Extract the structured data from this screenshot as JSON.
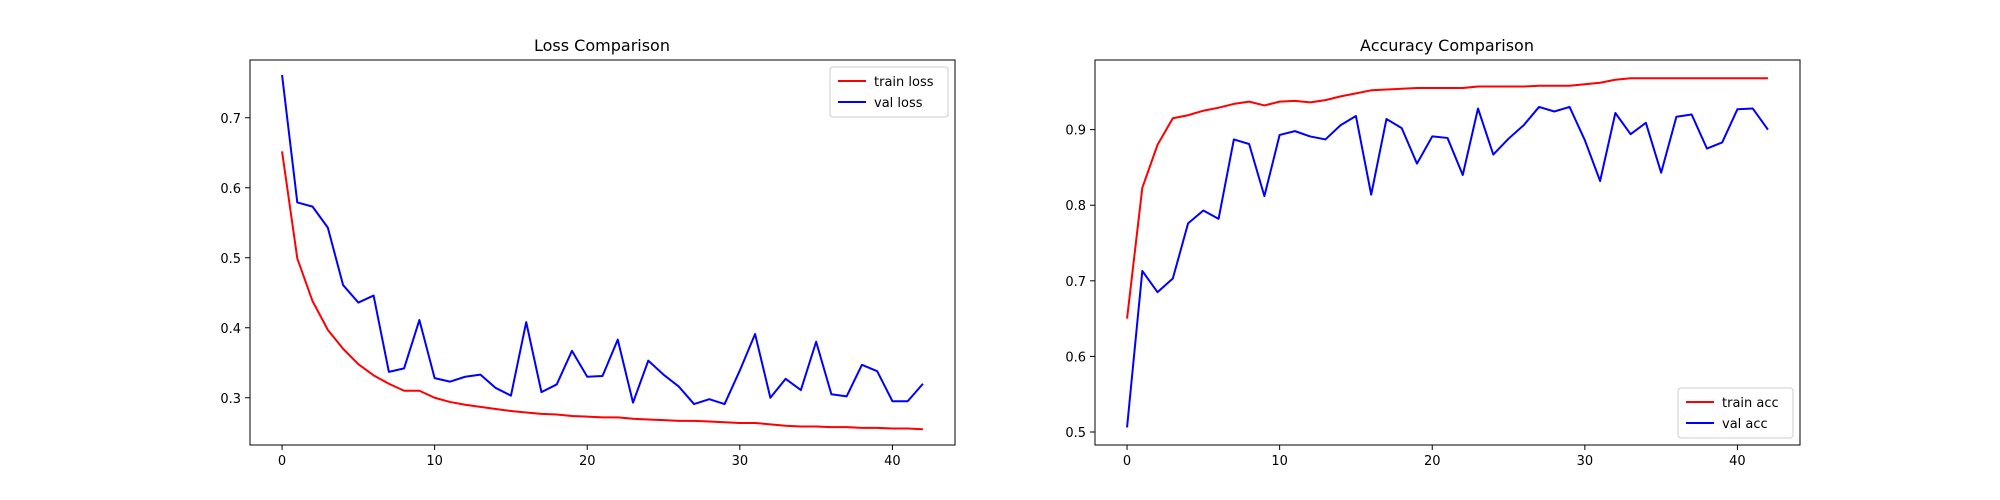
{
  "chart_data": [
    {
      "type": "line",
      "title": "Loss Comparison",
      "xlabel": "",
      "ylabel": "",
      "xlim": [
        -2.1,
        44.1
      ],
      "ylim": [
        0.2325,
        0.7825
      ],
      "x_ticks": [
        0,
        10,
        20,
        30,
        40
      ],
      "y_ticks": [
        0.3,
        0.4,
        0.5,
        0.6,
        0.7
      ],
      "legend_position": "top-right",
      "x": [
        0,
        1,
        2,
        3,
        4,
        5,
        6,
        7,
        8,
        9,
        10,
        11,
        12,
        13,
        14,
        15,
        16,
        17,
        18,
        19,
        20,
        21,
        22,
        23,
        24,
        25,
        26,
        27,
        28,
        29,
        30,
        31,
        32,
        33,
        34,
        35,
        36,
        37,
        38,
        39,
        40,
        41,
        42
      ],
      "series": [
        {
          "name": "train loss",
          "color": "#ff0000",
          "values": [
            0.652,
            0.499,
            0.438,
            0.397,
            0.37,
            0.348,
            0.332,
            0.32,
            0.31,
            0.31,
            0.3,
            0.294,
            0.29,
            0.287,
            0.284,
            0.281,
            0.279,
            0.277,
            0.276,
            0.274,
            0.273,
            0.272,
            0.272,
            0.27,
            0.269,
            0.268,
            0.267,
            0.267,
            0.266,
            0.265,
            0.264,
            0.264,
            0.262,
            0.26,
            0.259,
            0.259,
            0.258,
            0.258,
            0.257,
            0.257,
            0.256,
            0.256,
            0.255
          ]
        },
        {
          "name": "val loss",
          "color": "#0000ff",
          "values": [
            0.761,
            0.579,
            0.573,
            0.543,
            0.461,
            0.436,
            0.446,
            0.337,
            0.342,
            0.411,
            0.328,
            0.323,
            0.33,
            0.333,
            0.314,
            0.303,
            0.408,
            0.308,
            0.319,
            0.367,
            0.33,
            0.331,
            0.383,
            0.293,
            0.353,
            0.333,
            0.316,
            0.291,
            0.298,
            0.291,
            0.339,
            0.391,
            0.3,
            0.327,
            0.311,
            0.38,
            0.305,
            0.302,
            0.347,
            0.338,
            0.295,
            0.295,
            0.32
          ]
        }
      ]
    },
    {
      "type": "line",
      "title": "Accuracy Comparison",
      "xlabel": "",
      "ylabel": "",
      "xlim": [
        -2.1,
        44.1
      ],
      "ylim": [
        0.4828,
        0.9921
      ],
      "x_ticks": [
        0,
        10,
        20,
        30,
        40
      ],
      "y_ticks": [
        0.5,
        0.6,
        0.7,
        0.8,
        0.9
      ],
      "legend_position": "bottom-right",
      "x": [
        0,
        1,
        2,
        3,
        4,
        5,
        6,
        7,
        8,
        9,
        10,
        11,
        12,
        13,
        14,
        15,
        16,
        17,
        18,
        19,
        20,
        21,
        22,
        23,
        24,
        25,
        26,
        27,
        28,
        29,
        30,
        31,
        32,
        33,
        34,
        35,
        36,
        37,
        38,
        39,
        40,
        41,
        42
      ],
      "series": [
        {
          "name": "train acc",
          "color": "#ff0000",
          "values": [
            0.65,
            0.823,
            0.88,
            0.915,
            0.919,
            0.925,
            0.929,
            0.934,
            0.937,
            0.932,
            0.937,
            0.938,
            0.936,
            0.939,
            0.944,
            0.948,
            0.952,
            0.953,
            0.954,
            0.955,
            0.955,
            0.955,
            0.955,
            0.957,
            0.957,
            0.957,
            0.957,
            0.958,
            0.958,
            0.958,
            0.96,
            0.962,
            0.966,
            0.968,
            0.968,
            0.968,
            0.968,
            0.968,
            0.968,
            0.968,
            0.968,
            0.968,
            0.968
          ]
        },
        {
          "name": "val acc",
          "color": "#0000ff",
          "values": [
            0.506,
            0.713,
            0.685,
            0.703,
            0.776,
            0.793,
            0.782,
            0.887,
            0.881,
            0.812,
            0.893,
            0.898,
            0.891,
            0.887,
            0.906,
            0.918,
            0.814,
            0.914,
            0.902,
            0.855,
            0.891,
            0.889,
            0.84,
            0.928,
            0.867,
            0.888,
            0.906,
            0.93,
            0.924,
            0.93,
            0.886,
            0.832,
            0.922,
            0.894,
            0.909,
            0.843,
            0.917,
            0.92,
            0.875,
            0.883,
            0.927,
            0.928,
            0.9
          ]
        }
      ]
    }
  ]
}
